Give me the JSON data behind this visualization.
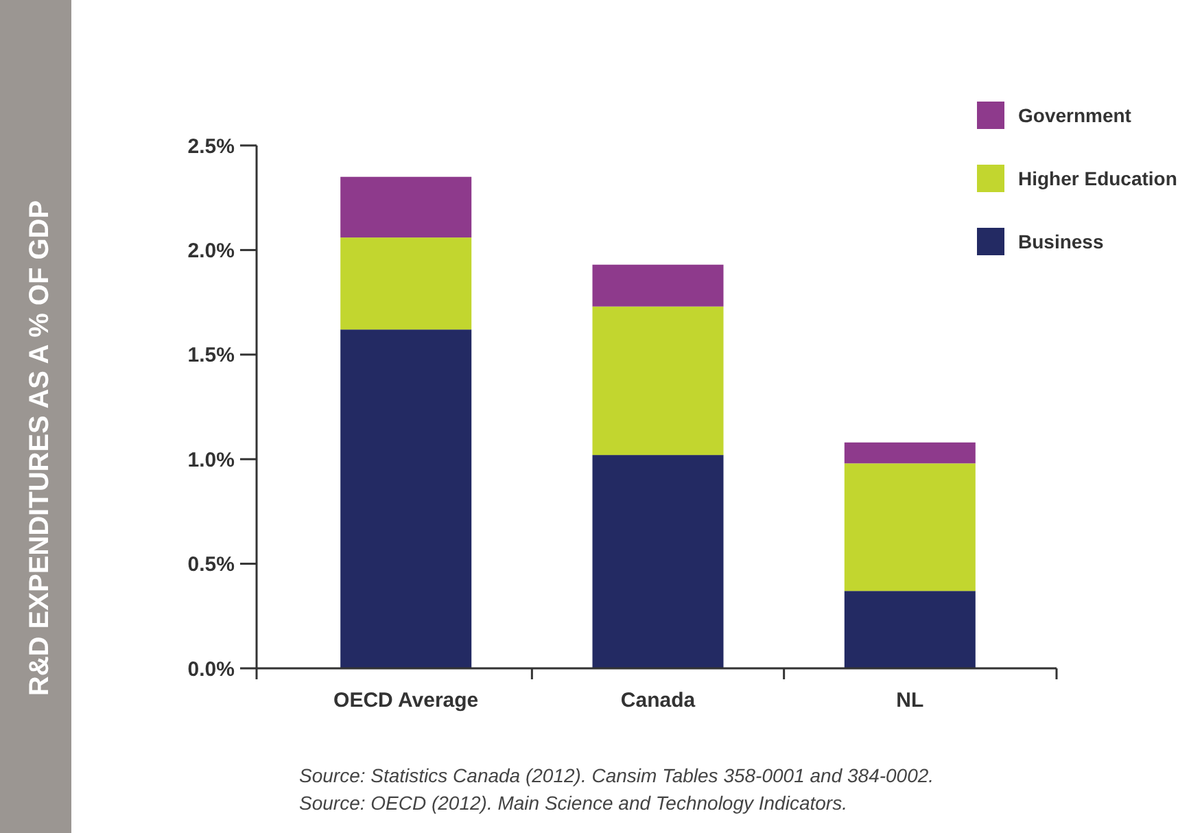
{
  "chart_data": {
    "type": "bar",
    "ylabel": "R&D EXPENDITURES AS A % OF GDP",
    "categories": [
      "OECD Average",
      "Canada",
      "NL"
    ],
    "stacked": true,
    "series": [
      {
        "name": "Business",
        "color": "#232a63",
        "values": [
          1.62,
          1.02,
          0.37
        ]
      },
      {
        "name": "Higher Education",
        "color": "#c2d62f",
        "values": [
          0.44,
          0.71,
          0.61
        ]
      },
      {
        "name": "Government",
        "color": "#8e3a8c",
        "values": [
          0.29,
          0.2,
          0.1
        ]
      }
    ],
    "ylim": [
      0,
      2.5
    ],
    "yticks": [
      {
        "value": 0,
        "label": "0.0%"
      },
      {
        "value": 0.5,
        "label": "0.5%"
      },
      {
        "value": 1,
        "label": "1.0%"
      },
      {
        "value": 1.5,
        "label": "1.5%"
      },
      {
        "value": 2,
        "label": "2.0%"
      },
      {
        "value": 2.5,
        "label": "2.5%"
      }
    ],
    "legend": "top right",
    "annotations": [
      "Source: Statistics Canada (2012). Cansim Tables 358-0001 and 384-0002.",
      "Source: OECD (2012). Main Science and Technology Indicators."
    ]
  }
}
